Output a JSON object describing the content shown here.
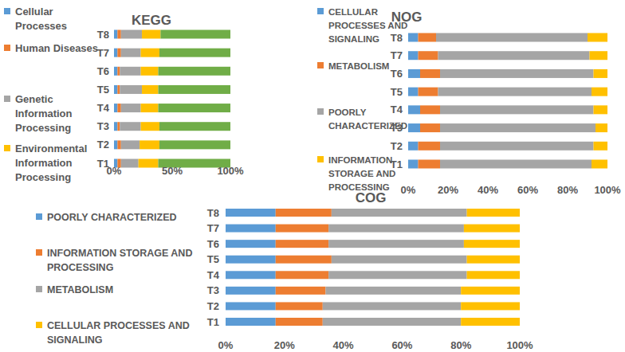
{
  "chart_data": [
    {
      "type": "bar",
      "title": "KEGG",
      "orientation": "horizontal",
      "stacked": true,
      "categories": [
        "T1",
        "T2",
        "T3",
        "T4",
        "T5",
        "T6",
        "T7",
        "T8"
      ],
      "xlim": [
        0,
        100
      ],
      "xticks": [
        {
          "value": 0,
          "label": "0%"
        },
        {
          "value": 50,
          "label": "50%"
        },
        {
          "value": 100,
          "label": "100%"
        }
      ],
      "series": [
        {
          "name": "Cellular Processes",
          "color": "#5b9bd5",
          "values": [
            3,
            3,
            3,
            3,
            3,
            3,
            3,
            3
          ]
        },
        {
          "name": "Human Diseases",
          "color": "#ed7d31",
          "values": [
            3,
            3,
            2,
            3,
            2,
            2,
            3,
            3
          ]
        },
        {
          "name": "Genetic Information Processing",
          "color": "#a5a5a5",
          "values": [
            15,
            16,
            18,
            17,
            19,
            18,
            17,
            18
          ]
        },
        {
          "name": "Environmental Information Processing",
          "color": "#ffc000",
          "values": [
            17,
            17,
            16,
            15,
            14,
            15,
            16,
            16
          ]
        },
        {
          "name": null,
          "color": "#70ad47",
          "values": [
            62,
            61,
            61,
            62,
            62,
            62,
            61,
            60
          ]
        }
      ]
    },
    {
      "type": "bar",
      "title": "NOG",
      "orientation": "horizontal",
      "stacked": true,
      "categories": [
        "T1",
        "T2",
        "T3",
        "T4",
        "T5",
        "T6",
        "T7",
        "T8"
      ],
      "xlim": [
        0,
        100
      ],
      "xticks": [
        {
          "value": 0,
          "label": "0%"
        },
        {
          "value": 20,
          "label": "20%"
        },
        {
          "value": 40,
          "label": "40%"
        },
        {
          "value": 60,
          "label": "60%"
        },
        {
          "value": 80,
          "label": "80%"
        },
        {
          "value": 100,
          "label": "100%"
        }
      ],
      "series": [
        {
          "name": "CELLULAR PROCESSES AND SIGNALING",
          "color": "#5b9bd5",
          "values": [
            5,
            5,
            6,
            6,
            5,
            6,
            5,
            5
          ]
        },
        {
          "name": "METABOLISM",
          "color": "#ed7d31",
          "values": [
            11,
            11,
            10,
            10,
            10,
            10,
            10,
            9
          ]
        },
        {
          "name": "POORLY CHARACTERIZED",
          "color": "#a5a5a5",
          "values": [
            76,
            77,
            78,
            77,
            77,
            77,
            76,
            76
          ]
        },
        {
          "name": "INFORMATION STORAGE AND PROCESSING",
          "color": "#ffc000",
          "values": [
            8,
            7,
            6,
            7,
            8,
            7,
            9,
            10
          ]
        }
      ]
    },
    {
      "type": "bar",
      "title": "COG",
      "orientation": "horizontal",
      "stacked": true,
      "categories": [
        "T1",
        "T2",
        "T3",
        "T4",
        "T5",
        "T6",
        "T7",
        "T8"
      ],
      "xlim": [
        0,
        100
      ],
      "xticks": [
        {
          "value": 0,
          "label": "0%"
        },
        {
          "value": 20,
          "label": "20%"
        },
        {
          "value": 40,
          "label": "40%"
        },
        {
          "value": 60,
          "label": "60%"
        },
        {
          "value": 80,
          "label": "80%"
        },
        {
          "value": 100,
          "label": "100%"
        }
      ],
      "series": [
        {
          "name": "POORLY CHARACTERIZED",
          "color": "#5b9bd5",
          "values": [
            17,
            17,
            17,
            17,
            17,
            17,
            17,
            17
          ]
        },
        {
          "name": "INFORMATION STORAGE AND PROCESSING",
          "color": "#ed7d31",
          "values": [
            16,
            16,
            17,
            18,
            19,
            18,
            18,
            19
          ]
        },
        {
          "name": "METABOLISM",
          "color": "#a5a5a5",
          "values": [
            47,
            47,
            46,
            47,
            46,
            46,
            46,
            46
          ]
        },
        {
          "name": "CELLULAR PROCESSES AND SIGNALING",
          "color": "#ffc000",
          "values": [
            20,
            20,
            20,
            18,
            18,
            19,
            19,
            18
          ]
        }
      ]
    }
  ]
}
